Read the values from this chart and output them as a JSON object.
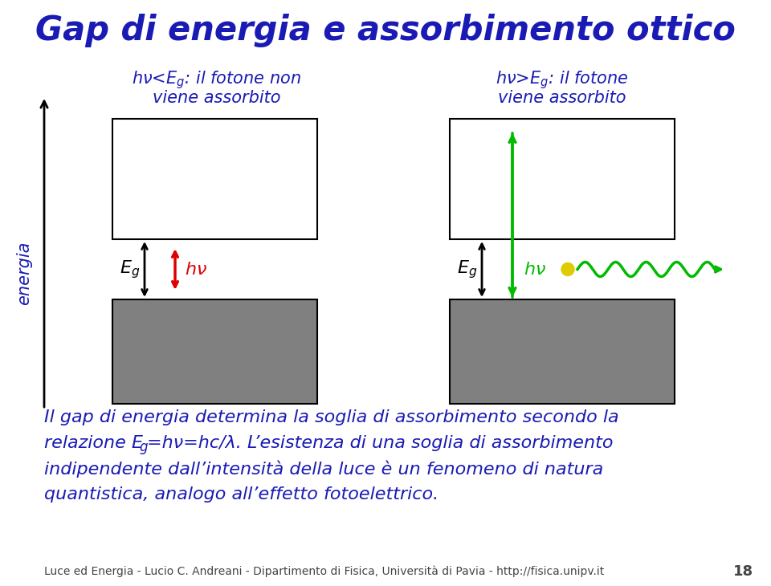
{
  "title": "Gap di energia e assorbimento ottico",
  "title_color": "#1a1ab5",
  "title_fontsize": 30,
  "bg_color": "#ffffff",
  "box_gray_color": "#808080",
  "box_white_color": "#ffffff",
  "box_border_color": "#000000",
  "energia_label": "energia",
  "arrow_black_color": "#000000",
  "arrow_red_color": "#dd0000",
  "arrow_green_color": "#00bb00",
  "blue_text_color": "#1a1ab5",
  "body_text_color": "#1a1ab5",
  "footer_color": "#444444",
  "footer": "Luce ed Energia - Lucio C. Andreani - Dipartimento di Fisica, Università di Pavia - http://fisica.unipv.it",
  "footer_page": "18"
}
